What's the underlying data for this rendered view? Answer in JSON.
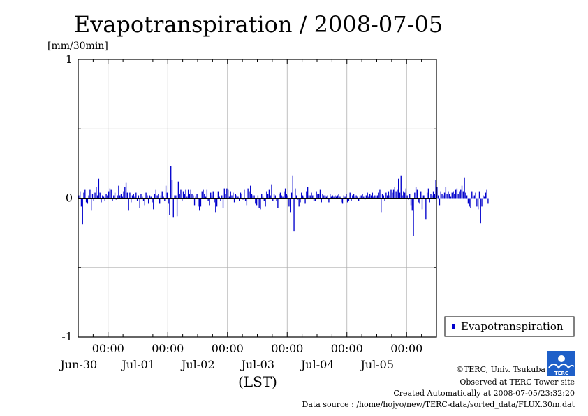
{
  "chart_data": {
    "type": "bar",
    "title": "Evapotranspiration / 2008-07-05",
    "ylabel": "[mm/30min]",
    "xlabel": "(LST)",
    "ylim": [
      -1,
      1
    ],
    "yticks": [
      {
        "value": 1,
        "label": "1"
      },
      {
        "value": 0,
        "label": "0"
      },
      {
        "value": -1,
        "label": "-1"
      }
    ],
    "grid": true,
    "x_start_hours": 0,
    "x_end_hours": 144,
    "time_ticks": [
      {
        "hours": 12,
        "time": "00:00",
        "date": "Jun-30"
      },
      {
        "hours": 36,
        "time": "00:00",
        "date": "Jul-01"
      },
      {
        "hours": 60,
        "time": "00:00",
        "date": "Jul-02"
      },
      {
        "hours": 84,
        "time": "00:00",
        "date": "Jul-03"
      },
      {
        "hours": 108,
        "time": "00:00",
        "date": "Jul-04"
      },
      {
        "hours": 132,
        "time": "00:00",
        "date": "Jul-05"
      }
    ],
    "series": [
      {
        "name": "Evapotranspiration",
        "color": "#0000cc",
        "step_hours": 0.5,
        "values": [
          0.02,
          0.05,
          -0.06,
          -0.19,
          0.04,
          0.06,
          -0.03,
          -0.04,
          0.02,
          0.06,
          -0.09,
          0.03,
          -0.02,
          0.04,
          0.08,
          0.02,
          0.14,
          0.04,
          -0.03,
          0.02,
          0.01,
          -0.02,
          0.03,
          0.02,
          0.05,
          0.07,
          0.06,
          -0.02,
          0.02,
          0.04,
          -0.01,
          0.02,
          0.09,
          0.02,
          0.03,
          0.01,
          0.05,
          0.08,
          0.11,
          0.04,
          -0.09,
          0.04,
          -0.03,
          0.02,
          0.03,
          0.01,
          0.04,
          -0.02,
          0.02,
          -0.07,
          0.03,
          0.01,
          -0.02,
          -0.05,
          0.04,
          0.02,
          -0.04,
          0.02,
          0.01,
          -0.03,
          -0.08,
          0.03,
          0.06,
          0.02,
          0.03,
          -0.04,
          0.02,
          0.05,
          0.01,
          -0.02,
          0.09,
          0.04,
          -0.04,
          -0.12,
          0.23,
          0.13,
          -0.14,
          0.02,
          0.02,
          -0.13,
          0.12,
          0.03,
          0.06,
          -0.02,
          0.05,
          0.03,
          0.06,
          0.01,
          0.06,
          0.03,
          0.06,
          0.03,
          0.02,
          -0.05,
          0.01,
          0.03,
          -0.06,
          -0.09,
          -0.06,
          0.05,
          0.06,
          0.03,
          0.01,
          0.06,
          -0.02,
          -0.05,
          0.04,
          0.02,
          0.05,
          -0.03,
          -0.1,
          -0.06,
          0.05,
          0.01,
          -0.02,
          0.02,
          -0.07,
          0.07,
          0.03,
          0.07,
          0.06,
          0.01,
          0.05,
          0.02,
          0.04,
          -0.03,
          0.03,
          0.02,
          0.01,
          -0.02,
          0.04,
          0.03,
          -0.01,
          0.06,
          -0.02,
          -0.05,
          0.07,
          0.05,
          0.09,
          0.03,
          0.02,
          0.02,
          -0.04,
          -0.05,
          0.02,
          -0.07,
          -0.08,
          0.03,
          0.01,
          -0.02,
          -0.06,
          0.05,
          0.03,
          0.06,
          0.02,
          0.1,
          -0.02,
          0.03,
          0.02,
          -0.02,
          -0.07,
          0.03,
          0.04,
          0.02,
          0.01,
          0.05,
          0.07,
          0.03,
          0.02,
          -0.06,
          -0.1,
          0.04,
          0.16,
          -0.24,
          0.07,
          0.02,
          -0.01,
          -0.06,
          -0.03,
          0.04,
          0.02,
          0.01,
          -0.04,
          0.05,
          0.08,
          0.02,
          0.02,
          0.04,
          0.02,
          -0.02,
          -0.02,
          0.05,
          0.03,
          0.03,
          0.06,
          -0.03,
          0.03,
          0.02,
          0.02,
          0.01,
          0.02,
          -0.03,
          0.03,
          0.01,
          0.02,
          0.01,
          0.02,
          0.01,
          0.02,
          0.03,
          0.01,
          -0.03,
          -0.04,
          0.02,
          0.01,
          0.03,
          -0.03,
          -0.02,
          0.04,
          -0.02,
          0.02,
          0.03,
          0.01,
          0.02,
          0.01,
          -0.02,
          0.01,
          0.02,
          0.03,
          0.01,
          -0.01,
          0.02,
          0.04,
          0.01,
          0.03,
          0.02,
          0.04,
          0.01,
          0.02,
          0.01,
          0.02,
          0.04,
          0.06,
          -0.1,
          0.03,
          0.02,
          -0.02,
          0.04,
          0.02,
          0.05,
          0.02,
          0.06,
          0.04,
          0.06,
          0.08,
          0.05,
          0.06,
          0.14,
          0.04,
          0.16,
          0.02,
          0.05,
          0.04,
          0.07,
          0.02,
          -0.01,
          0.03,
          -0.05,
          -0.09,
          -0.27,
          0.04,
          0.08,
          0.06,
          -0.03,
          -0.04,
          0.05,
          -0.08,
          0.02,
          0.02,
          -0.15,
          0.04,
          0.07,
          -0.03,
          0.03,
          0.02,
          0.05,
          0.03,
          0.13,
          0.08,
          0.02,
          -0.05,
          0.05,
          0.03,
          0.02,
          0.04,
          0.08,
          0.03,
          0.05,
          0.03,
          0.01,
          0.04,
          0.05,
          0.03,
          0.06,
          0.07,
          0.03,
          0.05,
          0.06,
          0.09,
          0.05,
          0.15,
          0.04,
          0.02,
          -0.04,
          -0.06,
          -0.07,
          0.05,
          0.01,
          0.02,
          0.04,
          -0.06,
          -0.08,
          0.05,
          -0.18,
          -0.06,
          0.02,
          0.01,
          0.04,
          0.06,
          -0.04
        ]
      }
    ],
    "legend_position": "right"
  },
  "credits": {
    "copyright": "©TERC, Univ. Tsukuba",
    "site": "Observed at TERC Tower site",
    "created": "Created Automatically at 2008-07-05/23:32:20",
    "source": "Data source : /home/hojyo/new/TERC-data/sorted_data/FLUX.30m.dat",
    "logo_text": "TERC"
  }
}
